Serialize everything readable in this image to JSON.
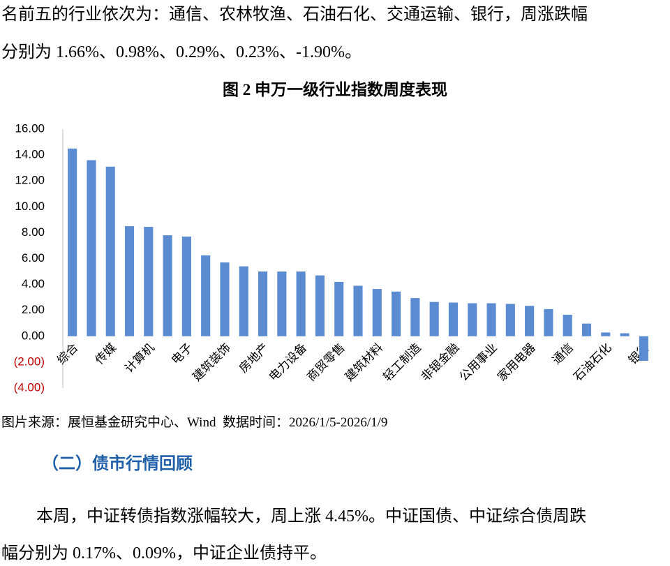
{
  "top_text": [
    "名前五的行业依次为：通信、农林牧渔、石油石化、交通运输、银行，周涨跌幅",
    "分别为 1.66%、0.98%、0.29%、0.23%、-1.90%。"
  ],
  "chart_data": {
    "type": "bar",
    "title": "图 2 申万一级行业指数周度表现",
    "categories": [
      "综合",
      null,
      "传媒",
      null,
      "计算机",
      null,
      "电子",
      null,
      "建筑装饰",
      null,
      "房地产",
      null,
      "电力设备",
      null,
      "商贸零售",
      null,
      "建筑材料",
      null,
      "轻工制造",
      null,
      "非银金融",
      null,
      "公用事业",
      null,
      "家用电器",
      null,
      "通信",
      null,
      "石油石化",
      null,
      "银行"
    ],
    "values": [
      14.5,
      13.6,
      13.1,
      8.5,
      8.45,
      7.8,
      7.7,
      6.25,
      5.7,
      5.4,
      5.0,
      5.0,
      5.0,
      4.7,
      4.2,
      3.9,
      3.65,
      3.45,
      2.95,
      2.65,
      2.6,
      2.55,
      2.55,
      2.5,
      2.35,
      2.1,
      1.66,
      0.98,
      0.29,
      0.23,
      -1.9
    ],
    "color": "#5b8bd0",
    "negative_tick_color": "#c00000",
    "ylim": [
      -4,
      16
    ],
    "yticks": [
      {
        "value": -4,
        "label": "(4.00)"
      },
      {
        "value": -2,
        "label": "(2.00)"
      },
      {
        "value": 0,
        "label": "0.00"
      },
      {
        "value": 2,
        "label": "2.00"
      },
      {
        "value": 4,
        "label": "4.00"
      },
      {
        "value": 6,
        "label": "6.00"
      },
      {
        "value": 8,
        "label": "8.00"
      },
      {
        "value": 10,
        "label": "10.00"
      },
      {
        "value": 12,
        "label": "12.00"
      },
      {
        "value": 14,
        "label": "14.00"
      },
      {
        "value": 16,
        "label": "16.00"
      }
    ],
    "grid": false
  },
  "source": "图片来源：展恒基金研究中心、Wind  数据时间：2026/1/5-2026/1/9",
  "section_heading": "（二）债市行情回顾",
  "bottom_text": [
    "本周，中证转债指数涨幅较大，周上涨 4.45%。中证国债、中证综合债周跌",
    "幅分别为 0.17%、0.09%，中证企业债持平。"
  ]
}
